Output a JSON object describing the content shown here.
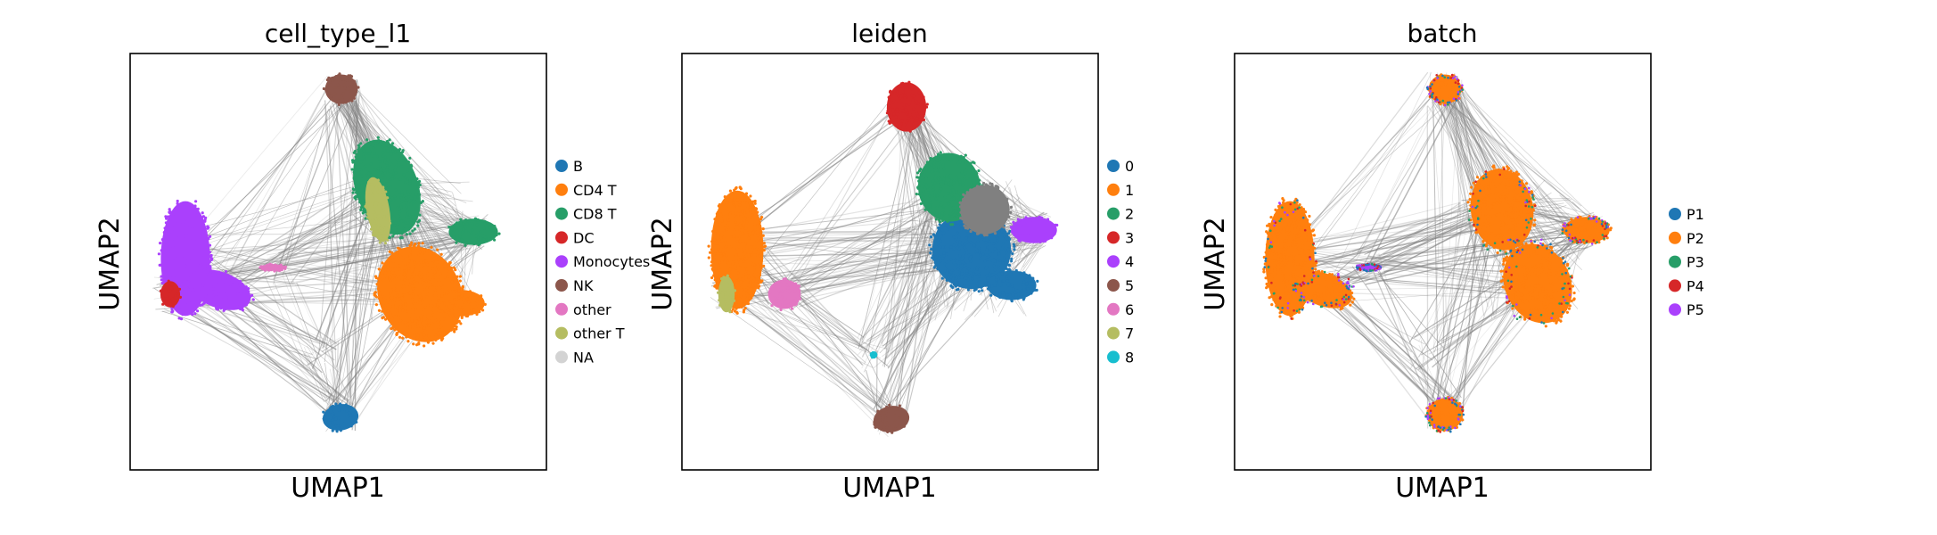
{
  "chart_data": [
    {
      "type": "scatter",
      "title": "cell_type_l1",
      "xlabel": "UMAP1",
      "ylabel": "UMAP2",
      "legend_position": "right",
      "grid": false,
      "categories": [
        "B",
        "CD4 T",
        "CD8 T",
        "DC",
        "Monocytes",
        "NK",
        "other",
        "other T",
        "NA"
      ],
      "colors": [
        "#1f77b4",
        "#ff7f0e",
        "#279e68",
        "#d62728",
        "#aa40fc",
        "#8c564b",
        "#e377c2",
        "#b5bd61",
        "#d3d3d3"
      ],
      "series": [
        {
          "name": "B",
          "x": [
            0.5
          ],
          "y": [
            0.13
          ]
        },
        {
          "name": "CD4 T",
          "x": [
            0.8
          ],
          "y": [
            0.5
          ]
        },
        {
          "name": "CD8 T",
          "x": [
            0.77
          ],
          "y": [
            0.75
          ]
        },
        {
          "name": "DC",
          "x": [
            0.11
          ],
          "y": [
            0.44
          ]
        },
        {
          "name": "Monocytes",
          "x": [
            0.19
          ],
          "y": [
            0.55
          ]
        },
        {
          "name": "NK",
          "x": [
            0.54
          ],
          "y": [
            0.87
          ]
        },
        {
          "name": "other",
          "x": [
            0.33
          ],
          "y": [
            0.5
          ]
        },
        {
          "name": "other T",
          "x": [
            0.62
          ],
          "y": [
            0.68
          ]
        }
      ]
    },
    {
      "type": "scatter",
      "title": "leiden",
      "xlabel": "UMAP1",
      "ylabel": "UMAP2",
      "legend_position": "right",
      "grid": false,
      "categories": [
        "0",
        "1",
        "2",
        "3",
        "4",
        "5",
        "6",
        "7",
        "8"
      ],
      "colors": [
        "#1f77b4",
        "#ff7f0e",
        "#279e68",
        "#d62728",
        "#aa40fc",
        "#8c564b",
        "#e377c2",
        "#b5bd61",
        "#17becf"
      ],
      "series": [
        {
          "name": "0",
          "x": [
            0.74
          ],
          "y": [
            0.47
          ]
        },
        {
          "name": "1",
          "x": [
            0.19
          ],
          "y": [
            0.58
          ]
        },
        {
          "name": "2",
          "x": [
            0.71
          ],
          "y": [
            0.69
          ]
        },
        {
          "name": "3",
          "x": [
            0.51
          ],
          "y": [
            0.85
          ]
        },
        {
          "name": "4",
          "x": [
            0.85
          ],
          "y": [
            0.58
          ]
        },
        {
          "name": "5",
          "x": [
            0.52
          ],
          "y": [
            0.14
          ]
        },
        {
          "name": "6",
          "x": [
            0.25
          ],
          "y": [
            0.43
          ]
        },
        {
          "name": "7",
          "x": [
            0.11
          ],
          "y": [
            0.44
          ]
        },
        {
          "name": "8",
          "x": [
            0.48
          ],
          "y": [
            0.27
          ]
        }
      ]
    },
    {
      "type": "scatter",
      "title": "batch",
      "xlabel": "UMAP1",
      "ylabel": "UMAP2",
      "legend_position": "right",
      "grid": false,
      "categories": [
        "P1",
        "P2",
        "P3",
        "P4",
        "P5"
      ],
      "colors": [
        "#1f77b4",
        "#ff7f0e",
        "#279e68",
        "#d62728",
        "#aa40fc"
      ],
      "series": [
        {
          "name": "P2",
          "x": [
            0.19,
            0.55,
            0.7,
            0.74,
            0.5
          ],
          "y": [
            0.58,
            0.87,
            0.7,
            0.45,
            0.14
          ]
        },
        {
          "name": "P5",
          "x": [
            0.13,
            0.68
          ],
          "y": [
            0.52,
            0.72
          ]
        }
      ]
    }
  ]
}
